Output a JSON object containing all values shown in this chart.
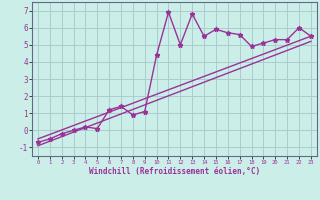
{
  "xlabel": "Windchill (Refroidissement éolien,°C)",
  "background_color": "#cceee8",
  "grid_color": "#aacccc",
  "line_color": "#993399",
  "xlim": [
    -0.5,
    23.5
  ],
  "ylim": [
    -1.5,
    7.5
  ],
  "xticks": [
    0,
    1,
    2,
    3,
    4,
    5,
    6,
    7,
    8,
    9,
    10,
    11,
    12,
    13,
    14,
    15,
    16,
    17,
    18,
    19,
    20,
    21,
    22,
    23
  ],
  "yticks": [
    -1,
    0,
    1,
    2,
    3,
    4,
    5,
    6,
    7
  ],
  "curve1_x": [
    0,
    1,
    2,
    3,
    4,
    5,
    6,
    7,
    8,
    9,
    10,
    11,
    12,
    13,
    14,
    15,
    16,
    17,
    18,
    19,
    20,
    21,
    22,
    23
  ],
  "curve1_y": [
    -0.7,
    -0.5,
    -0.2,
    0.0,
    0.2,
    0.1,
    1.2,
    1.4,
    0.9,
    1.1,
    4.4,
    6.9,
    5.0,
    6.8,
    5.5,
    5.9,
    5.7,
    5.6,
    4.9,
    5.1,
    5.3,
    5.3,
    6.0,
    5.5
  ],
  "curve2_x": [
    0,
    23
  ],
  "curve2_y": [
    -0.5,
    5.5
  ],
  "curve3_x": [
    0,
    23
  ],
  "curve3_y": [
    -0.9,
    5.2
  ],
  "marker_size": 3.5,
  "line_width": 1.0
}
